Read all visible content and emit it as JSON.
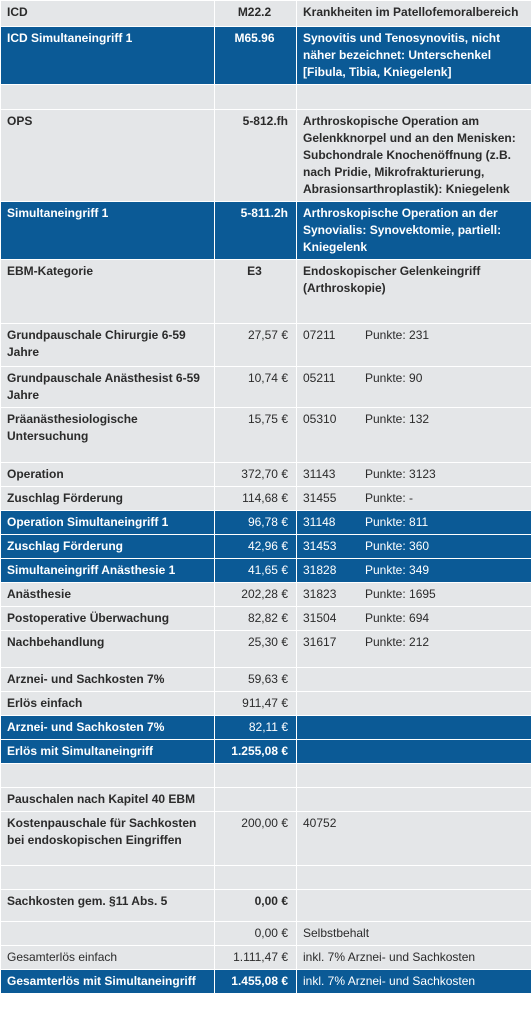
{
  "rows": [
    {
      "c1": "ICD",
      "c2": "M22.2",
      "c3": "Krankheiten im Patellofemoralbereich",
      "blue": false,
      "h": 26,
      "b1": true,
      "b2": true,
      "b3": true,
      "hd": true
    },
    {
      "c1": "ICD Simultaneingriff 1",
      "c2": "M65.96",
      "c3": "Synovitis und Tenosynovitis, nicht näher bezeichnet: Unterschenkel [Fibula, Tibia, Kniegelenk]",
      "blue": true,
      "h": 57,
      "b1": true,
      "b2": true,
      "b3": true,
      "hd": true
    },
    {
      "c1": "",
      "c2": "",
      "c3": "",
      "blue": false,
      "h": 25
    },
    {
      "c1": "OPS",
      "c2": "5-812.fh",
      "c3": "Arthroskopische Operation am Gelenkknorpel und an den Menisken: Subchondrale Knochenöffnung (z.B. nach Pridie, Mikrofrakturierung, Abrasionsarthroplastik): Kniegelenk",
      "blue": false,
      "h": 89,
      "b1": true,
      "b2": true,
      "b3": true
    },
    {
      "c1": "Simultaneingriff 1",
      "c2": "5-811.2h",
      "c3": "Arthroskopische Operation an der Synovialis: Synovektomie, partiell: Kniegelenk",
      "blue": true,
      "h": 56,
      "b1": true,
      "b2": true,
      "b3": true
    },
    {
      "c1": "EBM-Kategorie",
      "c2": "E3",
      "c3": "Endoskopischer Gelenkeingriff (Arthroskopie)",
      "blue": false,
      "h": 64,
      "b1": true,
      "b2": true,
      "b3": true,
      "hd": true
    },
    {
      "c1": "Grundpauschale Chirurgie 6-59 Jahre",
      "c2": "27,57 €",
      "code": "07211",
      "pts": "Punkte: 231",
      "blue": false,
      "h": 43,
      "b1": true
    },
    {
      "c1": "Grundpauschale Anästhesist 6-59 Jahre",
      "c2": "10,74 €",
      "code": "05211",
      "pts": "Punkte: 90",
      "blue": false,
      "h": 41,
      "b1": true
    },
    {
      "c1": "Präanästhesiologische Untersuchung",
      "c2": "15,75 €",
      "code": "05310",
      "pts": "Punkte: 132",
      "blue": false,
      "h": 55,
      "b1": true
    },
    {
      "c1": "Operation",
      "c2": "372,70 €",
      "code": "31143",
      "pts": "Punkte: 3123",
      "blue": false,
      "h": 24,
      "b1": true
    },
    {
      "c1": "Zuschlag Förderung",
      "c2": "114,68 €",
      "code": "31455",
      "pts": "Punkte: -",
      "blue": false,
      "h": 24,
      "b1": true
    },
    {
      "c1": "Operation Simultaneingriff 1",
      "c2": "96,78 €",
      "code": "31148",
      "pts": "Punkte: 811",
      "blue": true,
      "h": 24,
      "b1": true
    },
    {
      "c1": "Zuschlag Förderung",
      "c2": "42,96 €",
      "code": "31453",
      "pts": "Punkte: 360",
      "blue": true,
      "h": 24,
      "b1": true
    },
    {
      "c1": "Simultaneingriff Anästhesie 1",
      "c2": "41,65 €",
      "code": "31828",
      "pts": "Punkte: 349",
      "blue": true,
      "h": 24,
      "b1": true
    },
    {
      "c1": "Anästhesie",
      "c2": "202,28 €",
      "code": "31823",
      "pts": "Punkte: 1695",
      "blue": false,
      "h": 24,
      "b1": true
    },
    {
      "c1": "Postoperative Überwachung",
      "c2": "82,82 €",
      "code": "31504",
      "pts": "Punkte: 694",
      "blue": false,
      "h": 24,
      "b1": true
    },
    {
      "c1": "Nachbehandlung",
      "c2": "25,30 €",
      "code": "31617",
      "pts": "Punkte: 212",
      "blue": false,
      "h": 37,
      "b1": true
    },
    {
      "c1": "Arznei- und Sachkosten 7%",
      "c2": "59,63 €",
      "c3": "",
      "blue": false,
      "h": 24,
      "b1": true
    },
    {
      "c1": "Erlös einfach",
      "c2": "911,47 €",
      "c3": "",
      "blue": false,
      "h": 24,
      "b1": true
    },
    {
      "c1": "Arznei- und Sachkosten 7%",
      "c2": "82,11 €",
      "c3": "",
      "blue": true,
      "h": 24,
      "b1": true
    },
    {
      "c1": "Erlös mit Simultaneingriff",
      "c2": "1.255,08 €",
      "c3": "",
      "blue": true,
      "h": 24,
      "b1": true,
      "b2": true
    },
    {
      "c1": "",
      "c2": "",
      "c3": "",
      "blue": false,
      "h": 24
    },
    {
      "c1": "Pauschalen nach Kapitel 40 EBM",
      "c2": "",
      "c3": "",
      "blue": false,
      "h": 24,
      "b1": true
    },
    {
      "c1": "Kostenpauschale für Sachkosten bei endoskopischen Eingriffen",
      "c2": "200,00 €",
      "c3": "40752",
      "blue": false,
      "h": 54,
      "b1": true
    },
    {
      "c1": "",
      "c2": "",
      "c3": "",
      "blue": false,
      "h": 24
    },
    {
      "c1": "Sachkosten gem. §11 Abs. 5",
      "c2": "0,00 €",
      "c3": "",
      "blue": false,
      "h": 32,
      "b1": true,
      "b2": true
    },
    {
      "c1": "",
      "c2": "0,00 €",
      "c3": "Selbstbehalt",
      "blue": false,
      "h": 24
    },
    {
      "c1": "Gesamterlös einfach",
      "c2": "1.111,47 €",
      "c3": "inkl. 7% Arznei- und Sachkosten",
      "blue": false,
      "h": 24
    },
    {
      "c1": "Gesamterlös mit Simultaneingriff",
      "c2": "1.455,08 €",
      "c3": "inkl. 7% Arznei- und Sachkosten",
      "blue": true,
      "h": 24,
      "b1": true,
      "b2": true
    }
  ]
}
